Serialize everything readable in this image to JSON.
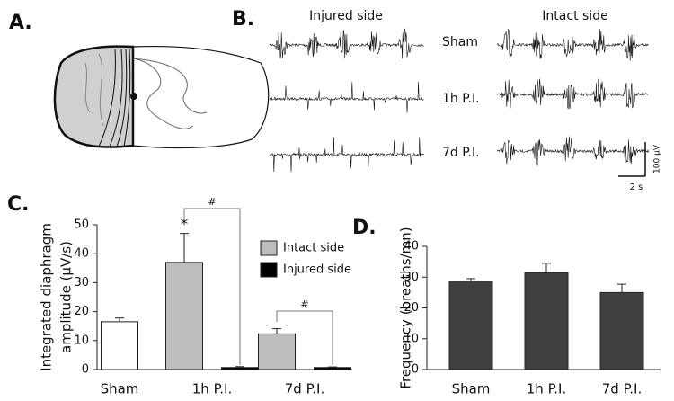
{
  "panels": {
    "a": "A.",
    "b": "B.",
    "c": "C.",
    "d": "D."
  },
  "traces": {
    "injured_title": "Injured side",
    "intact_title": "Intact side",
    "rows": [
      "Sham",
      "1h P.I.",
      "7d P.I."
    ],
    "scale_y": "100 µV",
    "scale_x": "2 s"
  },
  "chart_data": [
    {
      "type": "bar",
      "ylabel": [
        "Integrated diaphragm",
        "amplitude (µV/s)"
      ],
      "categories": [
        "Sham",
        "1h P.I.",
        "7d P.I."
      ],
      "series": [
        {
          "color": "#ffffff",
          "values": [
            16.5,
            null,
            null
          ],
          "errors": [
            1.3,
            null,
            null
          ]
        },
        {
          "name": "Intact side",
          "color": "#bdbdbd",
          "values": [
            null,
            37,
            12.3
          ],
          "errors": [
            null,
            10,
            1.8
          ]
        },
        {
          "name": "Injured side",
          "color": "#000000",
          "values": [
            null,
            0.7,
            0.7
          ],
          "errors": [
            null,
            0.3,
            0.2
          ]
        }
      ],
      "annotations": [
        "*",
        "#",
        "#"
      ],
      "ylim": [
        0,
        50
      ],
      "yticks": [
        0,
        10,
        20,
        30,
        40,
        50
      ]
    },
    {
      "type": "bar",
      "ylabel": [
        "Frequency (breaths/mn)"
      ],
      "categories": [
        "Sham",
        "1h P.I.",
        "7d P.I."
      ],
      "series": [
        {
          "color": "#404040",
          "values": [
            28.7,
            31.5,
            25
          ],
          "errors": [
            0.8,
            3,
            2.7
          ]
        }
      ],
      "ylim": [
        0,
        40
      ],
      "yticks": [
        0,
        10,
        20,
        30,
        40
      ]
    }
  ]
}
